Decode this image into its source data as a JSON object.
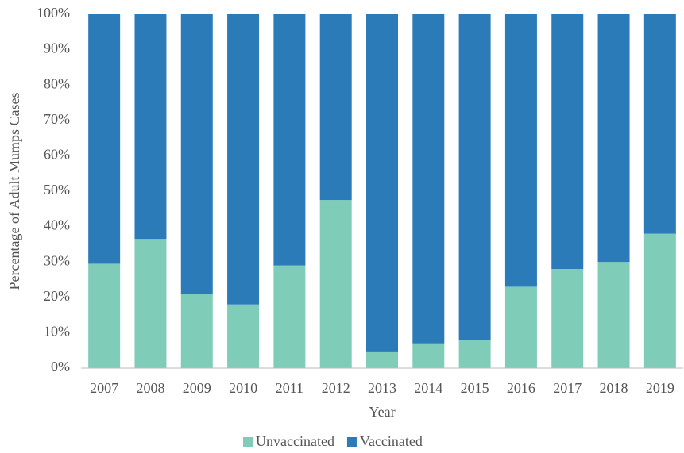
{
  "chart_data": {
    "type": "stacked_bar",
    "categories": [
      "2007",
      "2008",
      "2009",
      "2010",
      "2011",
      "2012",
      "2013",
      "2014",
      "2015",
      "2016",
      "2017",
      "2018",
      "2019"
    ],
    "series": [
      {
        "name": "Unvaccinated",
        "color": "#7fcdb8",
        "values": [
          29.5,
          36.5,
          21,
          18,
          29,
          47.5,
          4.5,
          7,
          8,
          23,
          28,
          30,
          38
        ]
      },
      {
        "name": "Vaccinated",
        "color": "#2b7bb9",
        "values": [
          70.5,
          63.5,
          79,
          82,
          71,
          52.5,
          95.5,
          93,
          92,
          77,
          72,
          70,
          62
        ]
      }
    ],
    "ylim": [
      0,
      100
    ],
    "yticks": [
      {
        "value": 0,
        "label": "0%"
      },
      {
        "value": 10,
        "label": "10%"
      },
      {
        "value": 20,
        "label": "20%"
      },
      {
        "value": 30,
        "label": "30%"
      },
      {
        "value": 40,
        "label": "40%"
      },
      {
        "value": 50,
        "label": "50%"
      },
      {
        "value": 60,
        "label": "60%"
      },
      {
        "value": 70,
        "label": "70%"
      },
      {
        "value": 80,
        "label": "80%"
      },
      {
        "value": 90,
        "label": "90%"
      },
      {
        "value": 100,
        "label": "100%"
      }
    ],
    "y_label": "Percentage of Adult Mumps Cases",
    "x_label": "Year",
    "legend": "bottom"
  }
}
